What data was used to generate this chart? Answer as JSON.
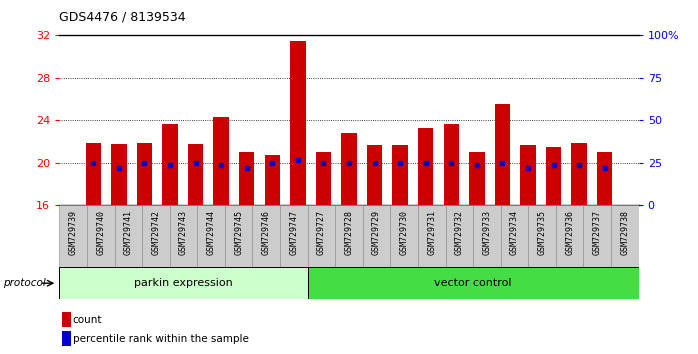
{
  "title": "GDS4476 / 8139534",
  "samples": [
    "GSM729739",
    "GSM729740",
    "GSM729741",
    "GSM729742",
    "GSM729743",
    "GSM729744",
    "GSM729745",
    "GSM729746",
    "GSM729747",
    "GSM729727",
    "GSM729728",
    "GSM729729",
    "GSM729730",
    "GSM729731",
    "GSM729732",
    "GSM729733",
    "GSM729734",
    "GSM729735",
    "GSM729736",
    "GSM729737",
    "GSM729738"
  ],
  "counts": [
    21.9,
    21.8,
    21.9,
    23.7,
    21.8,
    24.3,
    21.0,
    20.7,
    31.5,
    21.0,
    22.8,
    21.7,
    21.7,
    23.3,
    23.7,
    21.0,
    25.5,
    21.7,
    21.5,
    21.9,
    21.0
  ],
  "percentile_ranks_left": [
    20.0,
    19.5,
    20.0,
    19.8,
    20.0,
    19.8,
    19.5,
    20.0,
    20.3,
    20.0,
    20.0,
    20.0,
    20.0,
    20.0,
    20.0,
    19.8,
    20.0,
    19.5,
    19.8,
    19.8,
    19.5
  ],
  "bar_color": "#cc0000",
  "dot_color": "#0000cc",
  "ylim_left": [
    16,
    32
  ],
  "ylim_right": [
    0,
    100
  ],
  "yticks_left": [
    16,
    20,
    24,
    28,
    32
  ],
  "yticks_right": [
    0,
    25,
    50,
    75,
    100
  ],
  "ytick_labels_right": [
    "0",
    "25",
    "50",
    "75",
    "100%"
  ],
  "grid_values": [
    20,
    24,
    28
  ],
  "parkin_count": 9,
  "group_label_parkin": "parkin expression",
  "group_label_vector": "vector control",
  "group_color_parkin": "#ccffcc",
  "group_color_vector": "#44dd44",
  "protocol_label": "protocol",
  "legend_label_count": "count",
  "legend_label_pct": "percentile rank within the sample"
}
